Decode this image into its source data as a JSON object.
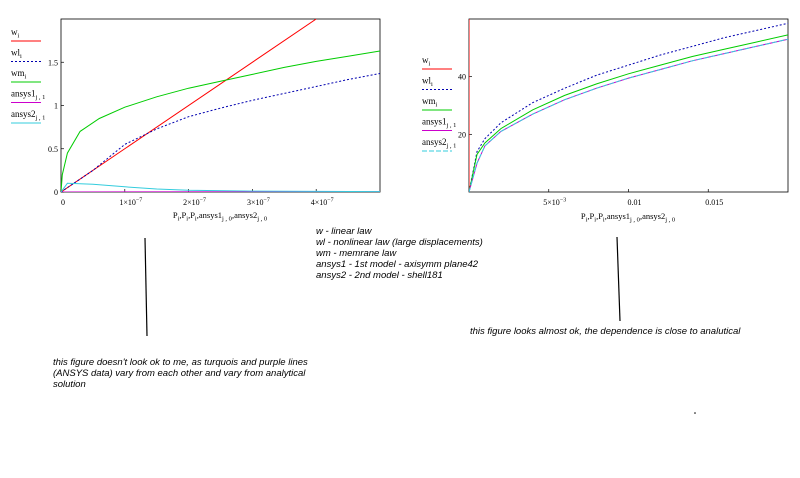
{
  "chart_data": [
    {
      "type": "line",
      "legend": [
        "w",
        "wl",
        "wm",
        "ansys1",
        "ansys2"
      ],
      "legend_subscripts": [
        "i",
        "i",
        "i",
        "j , 1",
        "j , 1"
      ],
      "xlabel": "P",
      "xlabel_parts": [
        "P",
        "i",
        ",P",
        "i",
        ",P",
        "i",
        ",ansys1",
        "j , 0",
        ",ansys2",
        "j , 0"
      ],
      "xlim": [
        0,
        5e-07
      ],
      "ylim": [
        0,
        2
      ],
      "x_ticks": [
        {
          "v": 0,
          "m": "0",
          "e": ""
        },
        {
          "v": 1e-07,
          "m": "1×10",
          "e": "−7"
        },
        {
          "v": 2e-07,
          "m": "2×10",
          "e": "−7"
        },
        {
          "v": 3e-07,
          "m": "3×10",
          "e": "−7"
        },
        {
          "v": 4e-07,
          "m": "4×10",
          "e": "−7"
        }
      ],
      "y_ticks": [
        {
          "v": 0,
          "t": "0"
        },
        {
          "v": 0.5,
          "t": "0.5"
        },
        {
          "v": 1,
          "t": "1"
        },
        {
          "v": 1.5,
          "t": "1.5"
        }
      ],
      "series": [
        {
          "name": "w",
          "color": "#ff0000",
          "dash": "",
          "x": [
            0,
            4e-07
          ],
          "y": [
            0,
            2.0
          ]
        },
        {
          "name": "wl",
          "color": "#0000b0",
          "dash": "2,2",
          "x": [
            0,
            5e-08,
            1e-07,
            1.5e-07,
            2e-07,
            2.5e-07,
            3e-07,
            3.5e-07,
            4e-07,
            4.5e-07,
            5e-07
          ],
          "y": [
            0,
            0.25,
            0.55,
            0.73,
            0.87,
            0.97,
            1.06,
            1.14,
            1.22,
            1.3,
            1.37
          ]
        },
        {
          "name": "wm",
          "color": "#00cc00",
          "dash": "",
          "x": [
            0,
            2e-09,
            1e-08,
            3e-08,
            6e-08,
            1e-07,
            1.5e-07,
            2e-07,
            2.5e-07,
            3e-07,
            3.5e-07,
            4e-07,
            4.5e-07,
            5e-07
          ],
          "y": [
            0,
            0.2,
            0.45,
            0.7,
            0.85,
            0.98,
            1.1,
            1.2,
            1.28,
            1.36,
            1.44,
            1.51,
            1.57,
            1.63
          ]
        },
        {
          "name": "ansys1",
          "color": "#cc00cc",
          "dash": "",
          "x": [
            0,
            5e-07
          ],
          "y": [
            0.0,
            0.005
          ]
        },
        {
          "name": "ansys2",
          "color": "#33ccdd",
          "dash": "",
          "x": [
            0,
            1e-08,
            5e-08,
            1e-07,
            1.5e-07,
            2e-07,
            3e-07,
            5e-07
          ],
          "y": [
            0.0,
            0.1,
            0.09,
            0.06,
            0.035,
            0.02,
            0.01,
            0.005
          ]
        }
      ]
    },
    {
      "type": "line",
      "legend": [
        "w",
        "wl",
        "wm",
        "ansys1",
        "ansys2"
      ],
      "legend_subscripts": [
        "i",
        "i",
        "i",
        "j , 1",
        "j , 1"
      ],
      "xlabel": "P",
      "xlabel_parts": [
        "P",
        "i",
        ",P",
        "i",
        ",P",
        "i",
        ",ansys1",
        "j , 0",
        ",ansys2",
        "j , 0"
      ],
      "xlim": [
        0,
        0.02
      ],
      "ylim": [
        0,
        60
      ],
      "x_ticks": [
        {
          "v": 0.005,
          "m": "5×10",
          "e": "−3"
        },
        {
          "v": 0.01,
          "m": "0.01",
          "e": ""
        },
        {
          "v": 0.015,
          "m": "0.015",
          "e": ""
        }
      ],
      "y_ticks": [
        {
          "v": 20,
          "t": "20"
        },
        {
          "v": 40,
          "t": "40"
        }
      ],
      "series": [
        {
          "name": "w",
          "color": "#ff0000",
          "dash": "",
          "x": [
            0,
            0
          ],
          "y": [
            0,
            62
          ]
        },
        {
          "name": "wl",
          "color": "#0000b0",
          "dash": "2,2",
          "x": [
            0,
            0.0005,
            0.001,
            0.002,
            0.004,
            0.006,
            0.008,
            0.01,
            0.012,
            0.014,
            0.016,
            0.018,
            0.02
          ],
          "y": [
            0,
            14.0,
            18.5,
            24.0,
            31.0,
            36.0,
            40.5,
            44.0,
            47.5,
            50.5,
            53.5,
            56.0,
            58.5
          ]
        },
        {
          "name": "wm",
          "color": "#00cc00",
          "dash": "",
          "x": [
            0,
            0.0005,
            0.001,
            0.002,
            0.004,
            0.006,
            0.008,
            0.01,
            0.012,
            0.014,
            0.016,
            0.018,
            0.02
          ],
          "y": [
            0,
            13.0,
            17.0,
            22.0,
            28.5,
            33.5,
            37.5,
            41.0,
            44.0,
            47.0,
            49.5,
            52.0,
            54.5
          ]
        },
        {
          "name": "ansys1",
          "color": "#cc00cc",
          "dash": "",
          "x": [
            0,
            0.0005,
            0.001,
            0.002,
            0.004,
            0.006,
            0.008,
            0.01,
            0.012,
            0.014,
            0.016,
            0.018,
            0.02
          ],
          "y": [
            0,
            10.0,
            16.0,
            21.0,
            27.0,
            32.0,
            36.0,
            39.5,
            42.5,
            45.5,
            48.0,
            50.5,
            53.0
          ]
        },
        {
          "name": "ansys2",
          "color": "#33ccdd",
          "dash": "5,2",
          "x": [
            0,
            0.0005,
            0.001,
            0.002,
            0.004,
            0.006,
            0.008,
            0.01,
            0.012,
            0.014,
            0.016,
            0.018,
            0.02
          ],
          "y": [
            0,
            10.0,
            16.0,
            21.0,
            27.0,
            32.0,
            36.0,
            39.5,
            42.5,
            45.5,
            48.0,
            50.5,
            53.0
          ]
        }
      ]
    }
  ],
  "notes": {
    "legend_lines": [
      "w - linear law",
      "wl - nonlinear law (large displacements)",
      "wm - memrane law",
      "ansys1 - 1st model - axisymm plane42",
      "ansys2 - 2nd model - shell181"
    ],
    "left_comment": [
      "this figure doesn't look ok to me, as turquois and purple lines",
      "(ANSYS data) vary from each other and vary from analytical",
      "solution"
    ],
    "right_comment": "this figure looks almost ok, the dependence is close to analutical"
  }
}
